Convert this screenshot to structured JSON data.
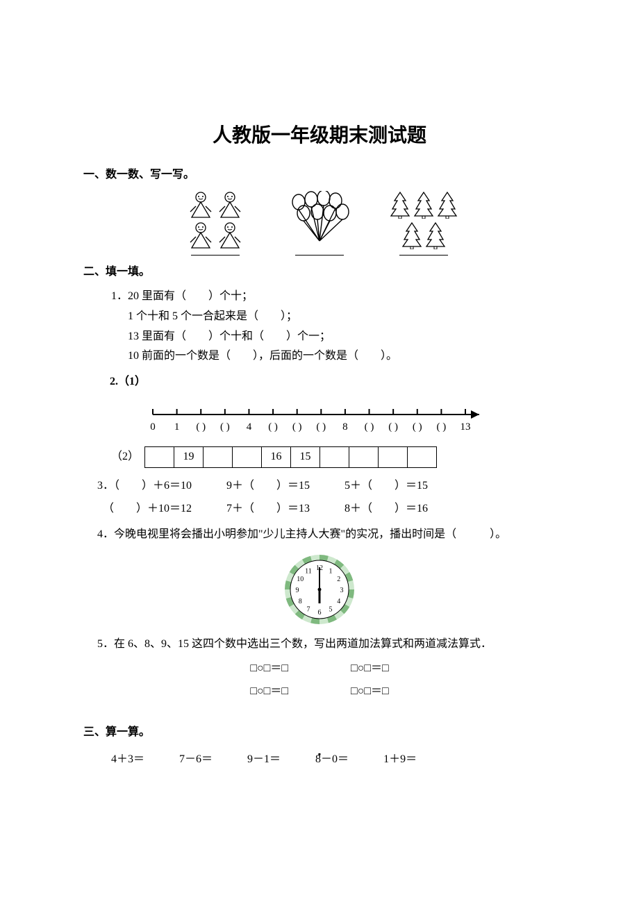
{
  "title": "人教版一年级期末测试题",
  "section1": {
    "heading": "一、数一数、写一写。",
    "items": [
      {
        "name": "dolls",
        "count": 4
      },
      {
        "name": "balloons",
        "count": 8
      },
      {
        "name": "trees",
        "count": 5
      }
    ]
  },
  "section2": {
    "heading": "二、填一填。",
    "q1": {
      "lines": [
        "1．20 里面有（　　）个十；",
        "1 个十和 5 个一合起来是（　　）；",
        "13 里面有（　　）个十和（　　）个一；",
        "10 前面的一个数是（　　），后面的一个数是（　　）。"
      ]
    },
    "q2": {
      "label": "2.（1）",
      "part2_label": "（2）",
      "numberline": {
        "start": 0,
        "end": 13,
        "labels": [
          "0",
          "1",
          "(  )",
          "(  )",
          "4",
          "(  )",
          "(  )",
          "(  )",
          "8",
          "(  )",
          "(  )",
          "(  )",
          "(  )",
          "13"
        ],
        "arrow": true,
        "stroke": "#000000"
      },
      "table_cells": [
        "",
        "19",
        "",
        "",
        "16",
        "15",
        "",
        "",
        "",
        ""
      ]
    },
    "q3": {
      "row1": [
        "3．（　　）＋6＝10",
        "9＋（　　）＝15",
        "5＋（　　）＝15"
      ],
      "row2": [
        "　（　　）＋10＝12",
        "7＋（　　）＝13",
        "8＋（　　）＝16"
      ]
    },
    "q4": {
      "text": "4．今晚电视里将会播出小明参加\"少儿主持人大赛\"的实况，播出时间是（　　　）。",
      "clock": {
        "hour": 6,
        "minute": 0,
        "size": 110,
        "face_color": "#ffffff",
        "border_pattern_colors": [
          "#7fb97f",
          "#cde8cd"
        ],
        "number_color": "#000000",
        "hand_color": "#000000"
      }
    },
    "q5": {
      "text": "5．在 6、8、9、15 这四个数中选出三个数，写出两道加法算式和两道减法算式．",
      "template": "□○□＝□"
    }
  },
  "center_dot": "▪",
  "section3": {
    "heading": "三、算一算。",
    "row": [
      "4＋3＝",
      "7－6＝",
      "9－1＝",
      "8－0＝",
      "1＋9＝"
    ]
  },
  "colors": {
    "text": "#000000",
    "background": "#ffffff",
    "border": "#000000"
  }
}
